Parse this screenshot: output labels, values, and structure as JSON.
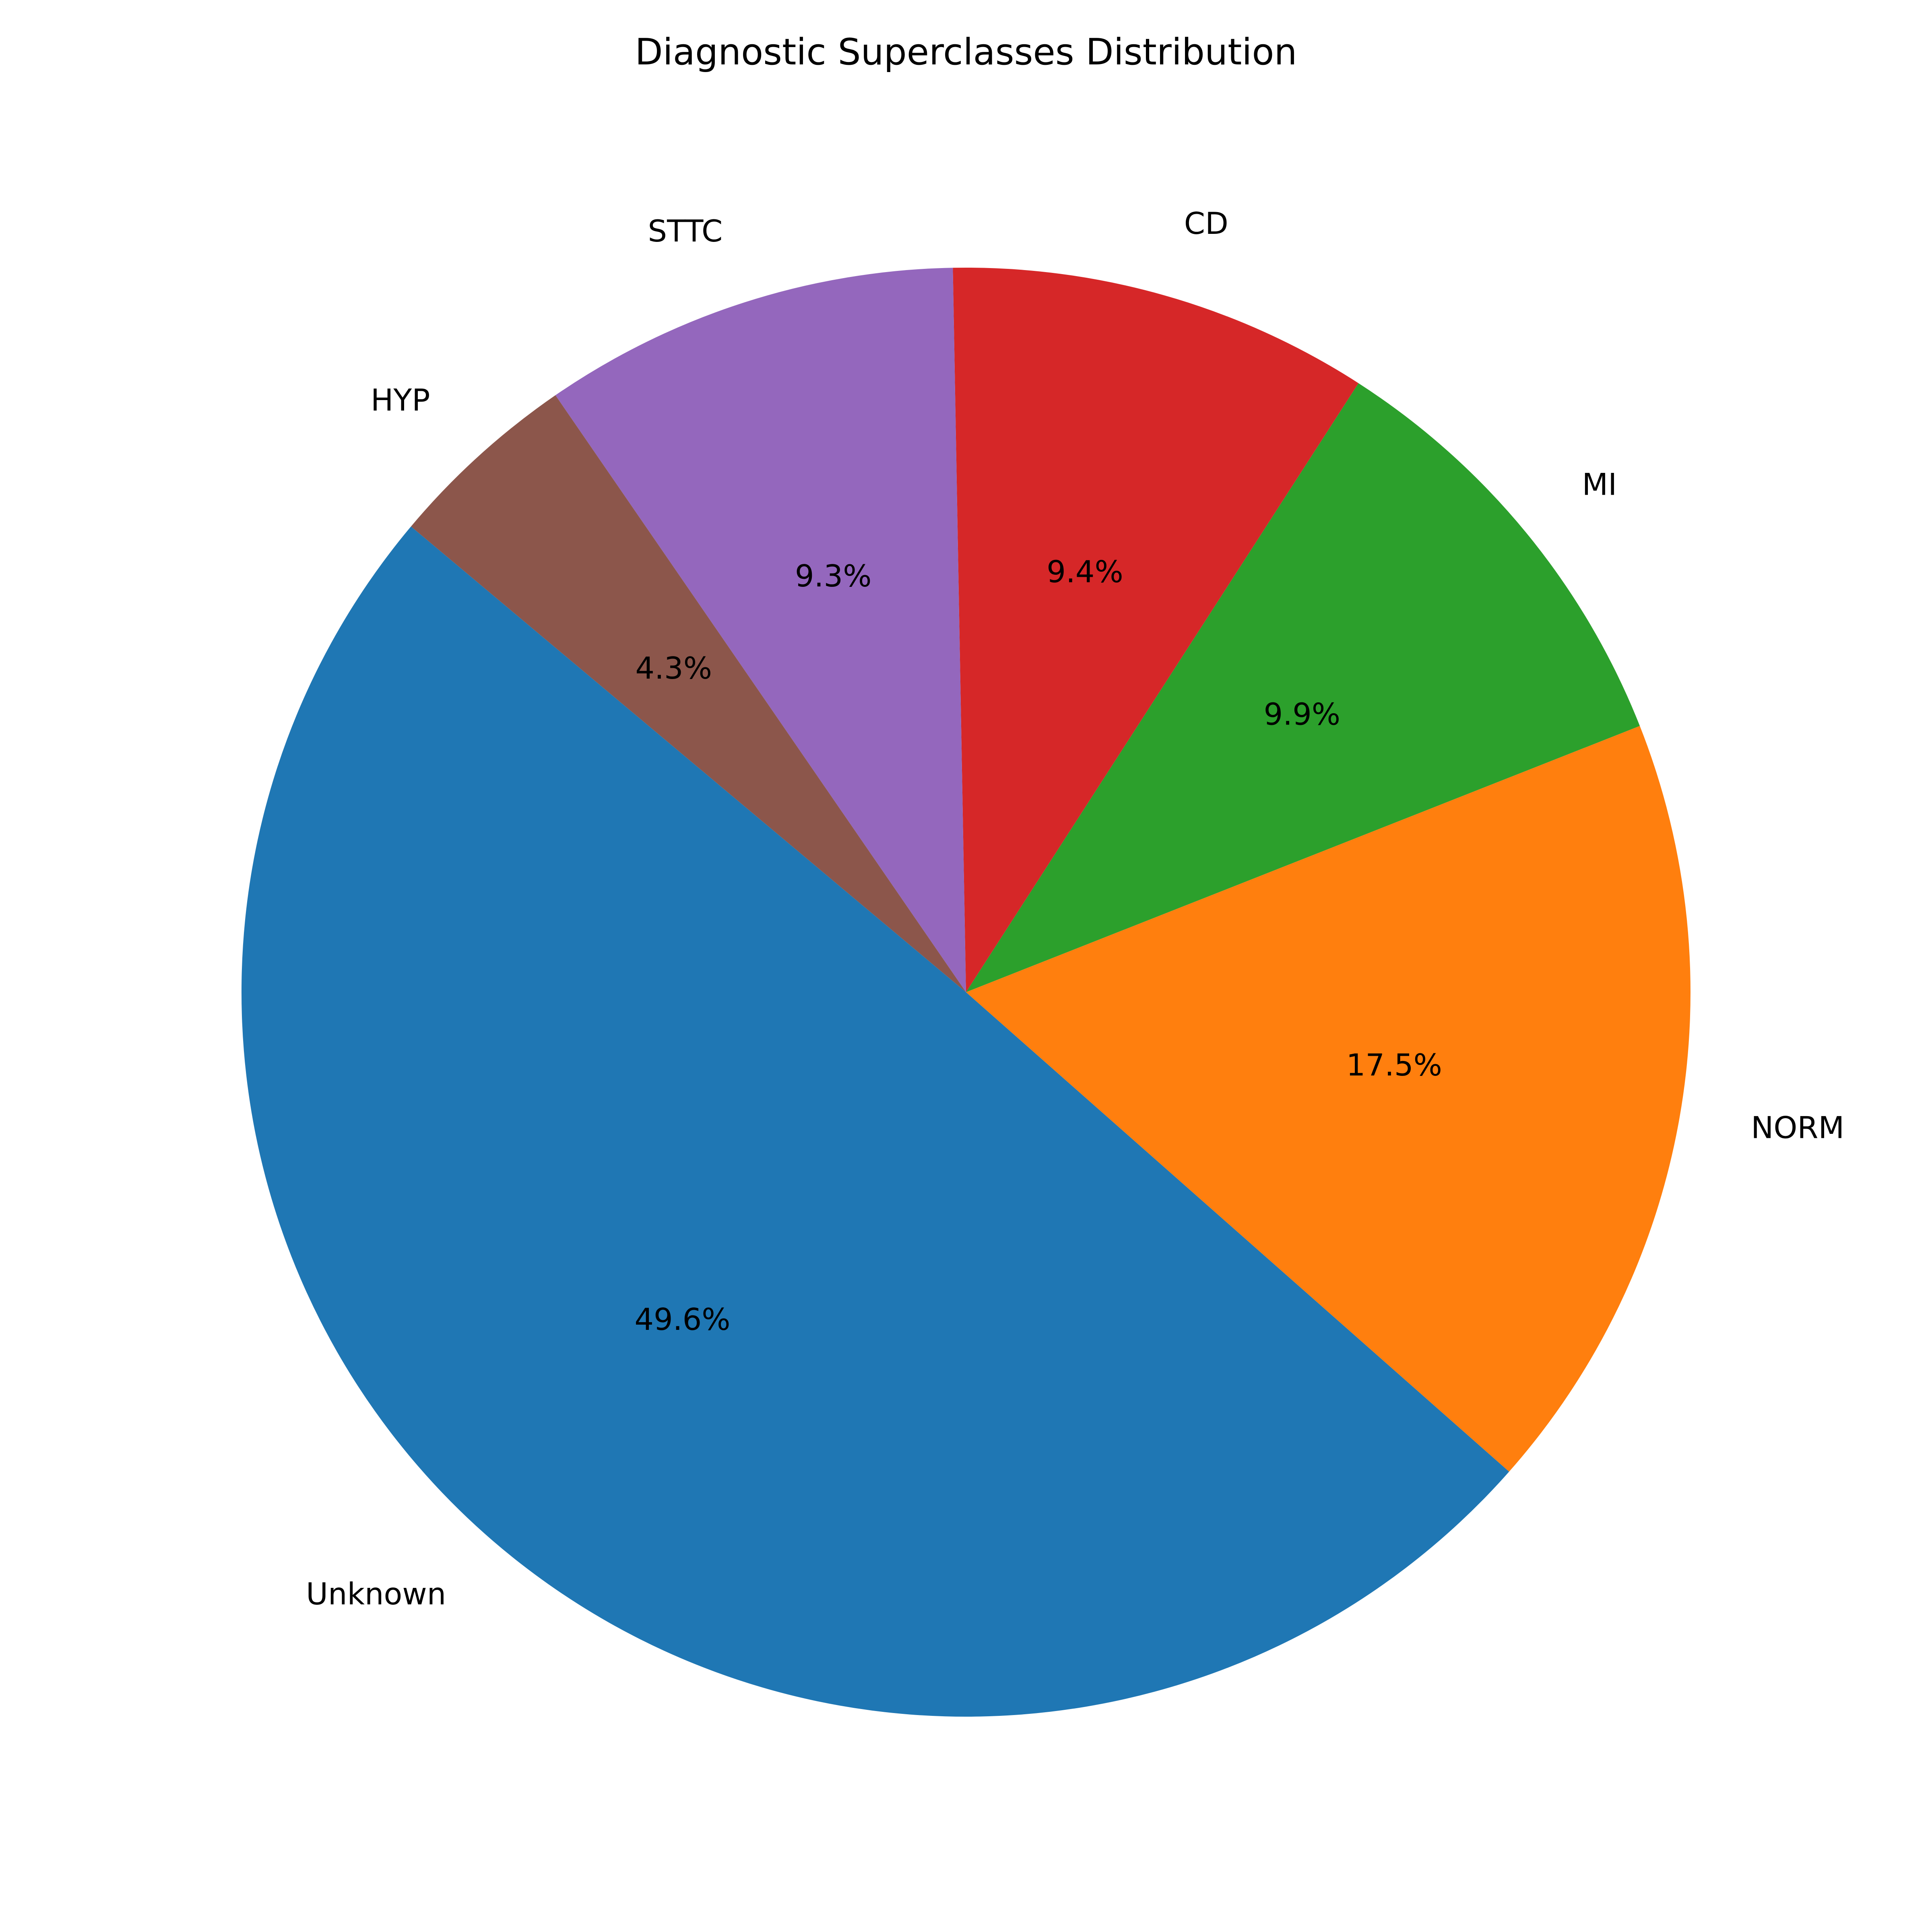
{
  "chart_data": {
    "type": "pie",
    "title": "Diagnostic Superclasses Distribution",
    "start_angle_deg": 140,
    "direction": "counterclockwise",
    "slices": [
      {
        "label": "Unknown",
        "value": 49.6,
        "pct_label": "49.6%",
        "color": "#1f77b4"
      },
      {
        "label": "NORM",
        "value": 17.5,
        "pct_label": "17.5%",
        "color": "#ff7f0e"
      },
      {
        "label": "MI",
        "value": 9.9,
        "pct_label": "9.9%",
        "color": "#2ca02c"
      },
      {
        "label": "CD",
        "value": 9.4,
        "pct_label": "9.4%",
        "color": "#d62728"
      },
      {
        "label": "STTC",
        "value": 9.3,
        "pct_label": "9.3%",
        "color": "#9467bd"
      },
      {
        "label": "HYP",
        "value": 4.3,
        "pct_label": "4.3%",
        "color": "#8c564b"
      }
    ]
  }
}
